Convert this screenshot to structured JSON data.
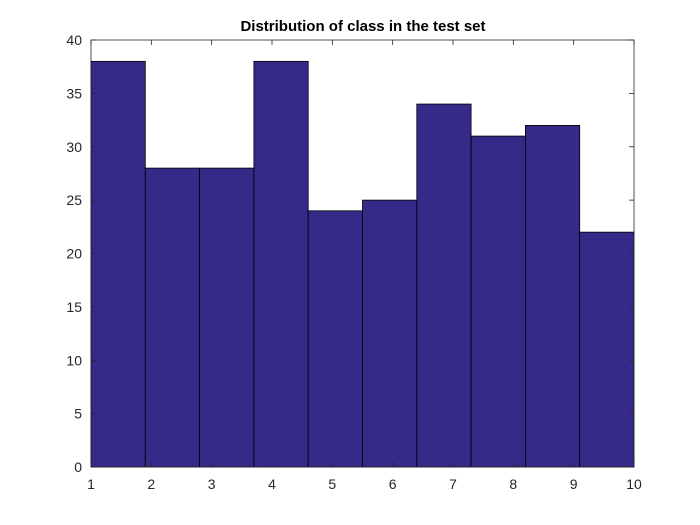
{
  "chart_data": {
    "type": "bar",
    "title": "Distribution of class in the test set",
    "xlabel": "",
    "ylabel": "",
    "categories": [
      "1",
      "2",
      "3",
      "4",
      "5",
      "6",
      "7",
      "8",
      "9",
      "10"
    ],
    "bin_edges": [
      1,
      1.9,
      2.8,
      3.7,
      4.6,
      5.5,
      6.4,
      7.3,
      8.2,
      9.1,
      10
    ],
    "values": [
      38,
      28,
      28,
      38,
      24,
      25,
      34,
      31,
      32,
      22
    ],
    "xlim": [
      1,
      10
    ],
    "ylim": [
      0,
      40
    ],
    "xticks": [
      1,
      2,
      3,
      4,
      5,
      6,
      7,
      8,
      9,
      10
    ],
    "yticks": [
      0,
      5,
      10,
      15,
      20,
      25,
      30,
      35,
      40
    ],
    "grid": false,
    "bar_color": "#352A87",
    "edge_color": "#000000"
  }
}
